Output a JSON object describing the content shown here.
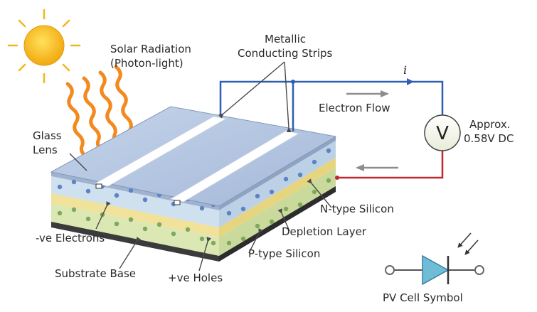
{
  "labels": {
    "solar_radiation_line1": "Solar Radiation",
    "solar_radiation_line2": "(Photon-light)",
    "metallic_line1": "Metallic",
    "metallic_line2": "Conducting Strips",
    "glass_line1": "Glass",
    "glass_line2": "Lens",
    "electron_flow": "Electron Flow",
    "approx_line1": "Approx.",
    "approx_line2": "0.58V DC",
    "n_type": "N-type Silicon",
    "depletion": "Depletion Layer",
    "p_type": "P-type Silicon",
    "ve_electrons": "-ve Electrons",
    "substrate": "Substrate Base",
    "ve_holes": "+ve Holes",
    "pv_symbol": "PV Cell Symbol",
    "current_symbol": "i",
    "voltmeter_symbol": "V"
  },
  "colors": {
    "sun": "#f7c31c",
    "rays": "#f28a1f",
    "glass_top": "#b4c6e0",
    "n_layer": "#cfe0ef",
    "depletion_layer": "#f0e29a",
    "p_layer": "#dbe8b3",
    "substrate": "#3b3b3b",
    "wire_negative": "#2f5fb0",
    "wire_positive": "#c0282d",
    "diode": "#6fbcd6"
  },
  "icons": {
    "sun": "sun-icon",
    "rays": "wavy-ray-arrow-icon",
    "voltmeter": "voltmeter-icon",
    "pv_cell": "photodiode-symbol-icon"
  }
}
